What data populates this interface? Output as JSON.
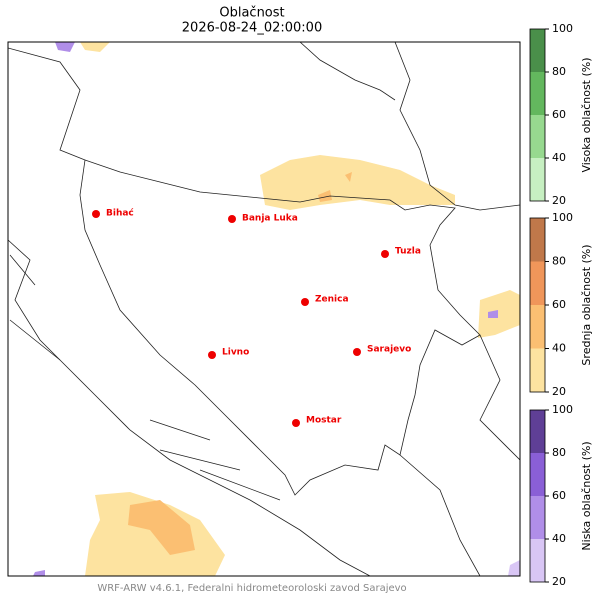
{
  "title": "Oblačnost",
  "subtitle": "2026-08-24_02:00:00",
  "cities": [
    "Bihać",
    "Banja Luka",
    "Tuzla",
    "Zenica",
    "Livno",
    "Sarajevo",
    "Mostar"
  ],
  "colorbars": [
    {
      "label": "Visoka oblačnost (%)",
      "lim": [
        20,
        100
      ],
      "ticks": [
        20,
        40,
        60,
        80,
        100
      ],
      "colors": [
        "#c7f0c2",
        "#97d98f",
        "#63b75e",
        "#4a8f4a"
      ]
    },
    {
      "label": "Srednja oblačnost (%)",
      "lim": [
        20,
        100
      ],
      "ticks": [
        20,
        40,
        60,
        80,
        100
      ],
      "colors": [
        "#fde3a0",
        "#fbbf72",
        "#f0965a",
        "#c0784a"
      ]
    },
    {
      "label": "Niska oblačnost (%)",
      "lim": [
        20,
        100
      ],
      "ticks": [
        20,
        40,
        60,
        80,
        100
      ],
      "colors": [
        "#d9c6f5",
        "#b08ee8",
        "#8a5fd6",
        "#5f3f96"
      ]
    }
  ],
  "footer": "WRF-ARW v4.6.1, Federalni hidrometeoroloski zavod Sarajevo"
}
